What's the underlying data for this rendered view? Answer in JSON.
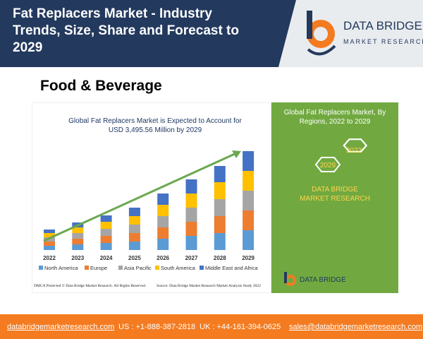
{
  "header": {
    "title": "Fat Replacers Market - Industry Trends, Size, Share and Forecast to 2029",
    "logo_name": "DATA BRIDGE",
    "logo_tagline": "MARKET RESEARCH"
  },
  "section": "Food & Beverage",
  "chart_data": {
    "type": "bar",
    "stacked": true,
    "title": "Global Fat Replacers Market is Expected to Account for USD 3,495.56 Million by 2029",
    "categories": [
      "2022",
      "2023",
      "2024",
      "2025",
      "2026",
      "2027",
      "2028",
      "2029"
    ],
    "series": [
      {
        "name": "North America",
        "color": "#5b9bd5",
        "values": [
          6,
          8,
          10,
          12,
          16,
          20,
          24,
          28
        ]
      },
      {
        "name": "Europe",
        "color": "#ed7d31",
        "values": [
          6,
          8,
          10,
          12,
          16,
          20,
          24,
          28
        ]
      },
      {
        "name": "Asia Pacific",
        "color": "#a5a5a5",
        "values": [
          6,
          8,
          10,
          12,
          16,
          20,
          24,
          28
        ]
      },
      {
        "name": "South America",
        "color": "#ffc000",
        "values": [
          6,
          8,
          10,
          12,
          16,
          20,
          24,
          28
        ]
      },
      {
        "name": "Middle East and Africa",
        "color": "#4472c4",
        "values": [
          5,
          7,
          9,
          12,
          16,
          20,
          23,
          28
        ]
      }
    ]
  },
  "side_panel": {
    "title": "Global Fat Replacers Market, By Regions, 2022 to 2029",
    "hexagons": [
      "2022",
      "2029"
    ],
    "brand": "DATA BRIDGE MARKET RESEARCH",
    "logo": "DATA BRIDGE"
  },
  "notes": {
    "left": "DMCA Protected © Data Bridge Market Research. All Rights Reserved.",
    "right": "Source: Data Bridge Market Research Market Analysis Study 2022"
  },
  "footer": {
    "website": "databridgemarketresearch.com",
    "phone_us": "US : +1-888-387-2818",
    "phone_uk": "UK : +44-161-394-0625",
    "email": "sales@databridgemarketresearch.com"
  }
}
